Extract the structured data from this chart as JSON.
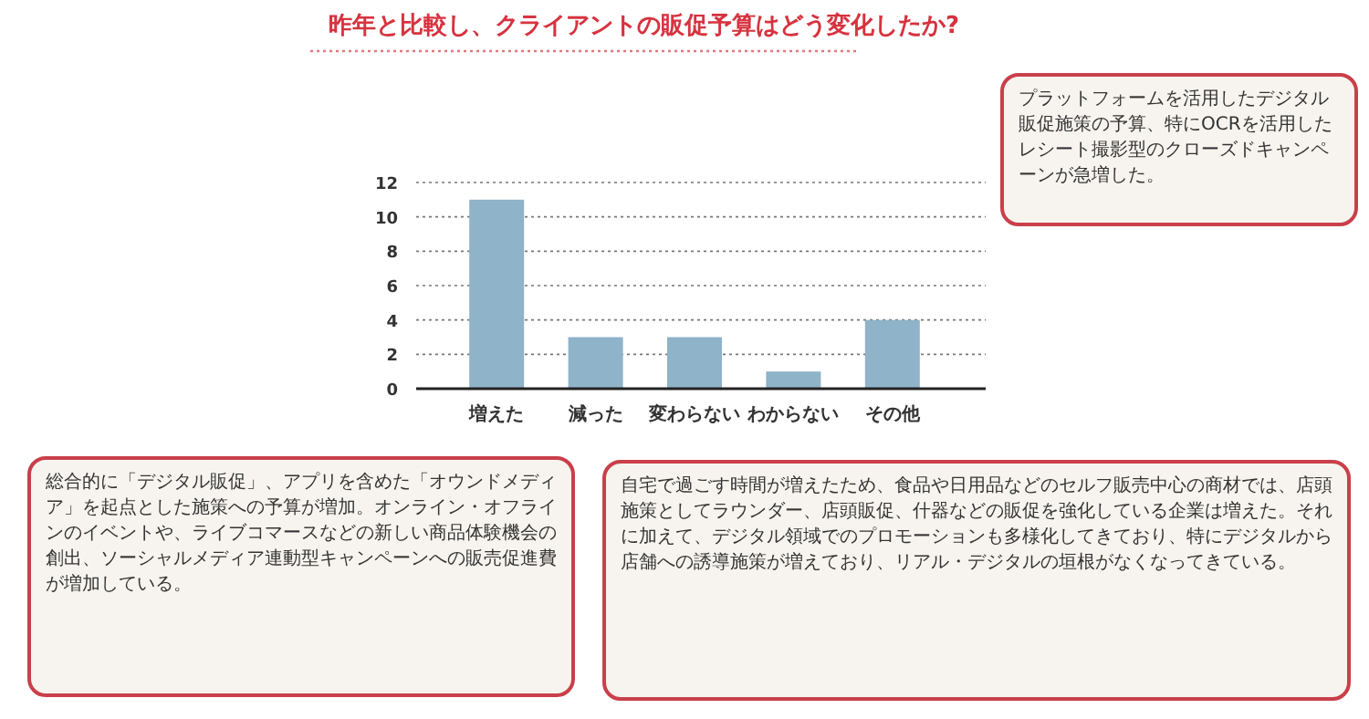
{
  "chart_data": {
    "type": "bar",
    "title": "昨年と比較し、クライアントの販促予算はどう変化したか?",
    "categories": [
      "増えた",
      "減った",
      "変わらない",
      "わからない",
      "その他"
    ],
    "values": [
      11,
      3,
      3,
      1,
      4
    ],
    "color": "#8fb3c8",
    "ylim": [
      0,
      12
    ],
    "yticks": [
      0,
      2,
      4,
      6,
      8,
      10,
      12
    ],
    "grid": "y",
    "annotations": [
      "プラットフォームを活用したデジタル販促施策の予算、特にOCRを活用したレシート撮影型のクローズドキャンペーンが急増した。",
      "総合的に「デジタル販促」、アプリを含めた「オウンドメディア」を起点とした施策への予算が増加。オンライン・オフラインのイベントや、ライブコマースなどの新しい商品体験機会の創出、ソーシャルメディア連動型キャンペーンへの販売促進費が増加している。",
      "自宅で過ごす時間が増えたため、食品や日用品などのセルフ販売中心の商材では、店頭施策としてラウンダー、店頭販促、什器などの販促を強化している企業は増えた。それに加えて、デジタル領域でのプロモーションも多様化してきており、特にデジタルから店舗への誘導施策が増えており、リアル・デジタルの垣根がなくなってきている。"
    ]
  }
}
